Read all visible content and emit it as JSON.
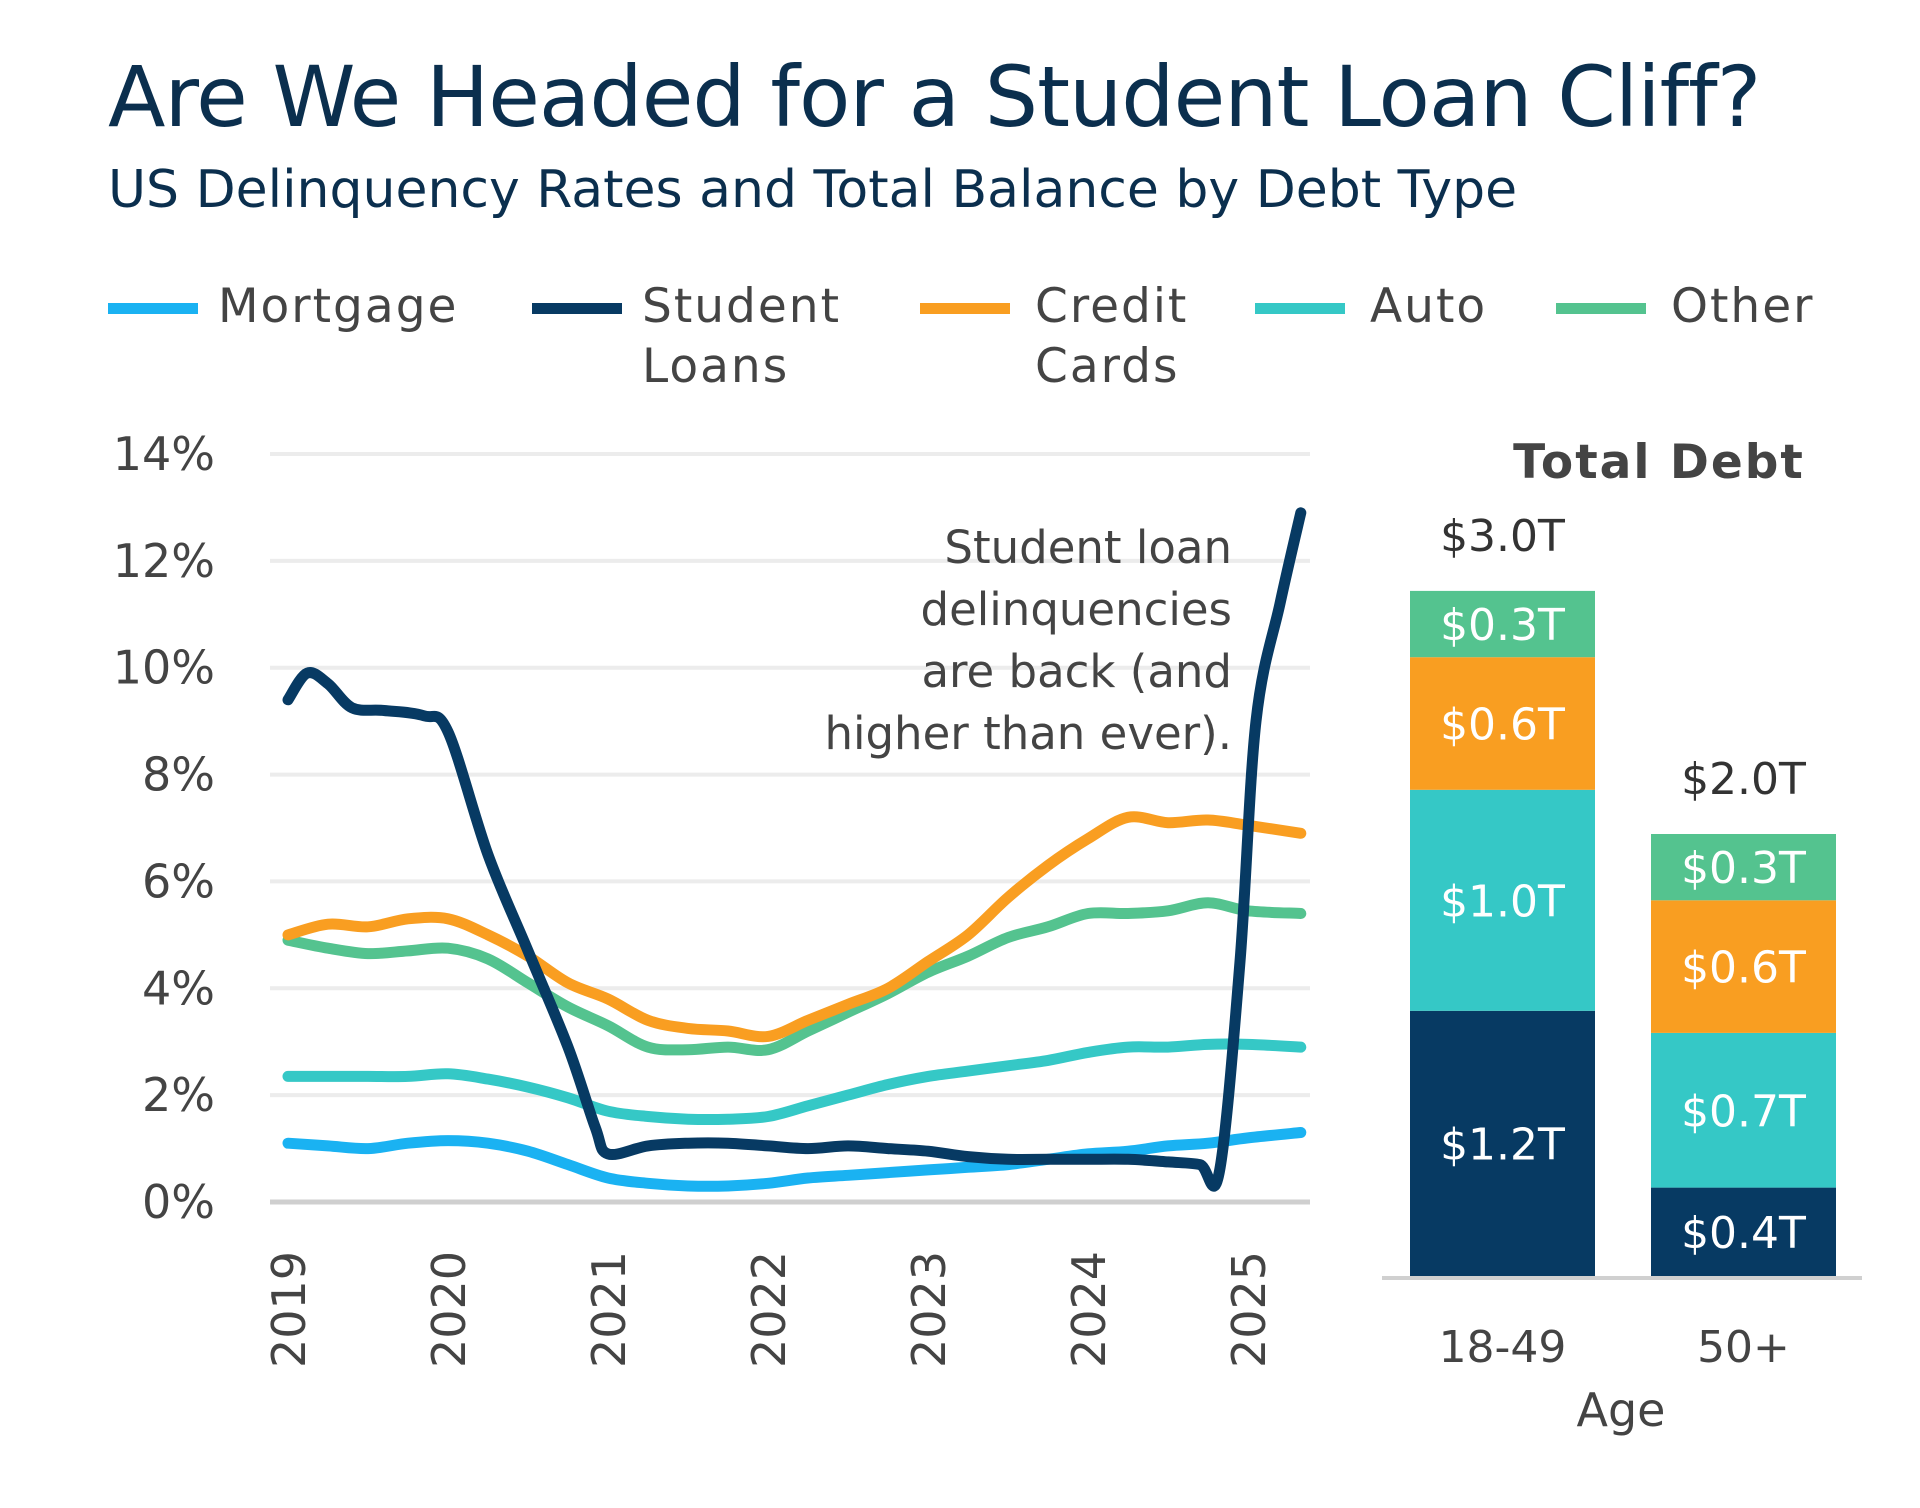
{
  "title": "Are We Headed for a Student Loan Cliff?",
  "subtitle": "US Delinquency Rates and Total Balance by Debt Type",
  "chart_data": [
    {
      "type": "line",
      "x_ticks": [
        "2019",
        "2020",
        "2021",
        "2022",
        "2023",
        "2024",
        "2025"
      ],
      "y_ticks": [
        "0%",
        "2%",
        "4%",
        "6%",
        "8%",
        "10%",
        "12%",
        "14%"
      ],
      "ylim": [
        0,
        14
      ],
      "grid": true,
      "legend_position": "top",
      "annotation": "Student loan delinquencies are back (and higher than ever).",
      "series": [
        {
          "name": "Mortgage",
          "color": "#1ab2f2",
          "points": [
            [
              2019.0,
              1.1
            ],
            [
              2019.25,
              1.05
            ],
            [
              2019.5,
              1.0
            ],
            [
              2019.75,
              1.1
            ],
            [
              2020.0,
              1.15
            ],
            [
              2020.25,
              1.1
            ],
            [
              2020.5,
              0.95
            ],
            [
              2020.75,
              0.7
            ],
            [
              2021.0,
              0.45
            ],
            [
              2021.25,
              0.35
            ],
            [
              2021.5,
              0.3
            ],
            [
              2021.75,
              0.3
            ],
            [
              2022.0,
              0.35
            ],
            [
              2022.25,
              0.45
            ],
            [
              2022.5,
              0.5
            ],
            [
              2022.75,
              0.55
            ],
            [
              2023.0,
              0.6
            ],
            [
              2023.25,
              0.65
            ],
            [
              2023.5,
              0.7
            ],
            [
              2023.75,
              0.8
            ],
            [
              2024.0,
              0.9
            ],
            [
              2024.25,
              0.95
            ],
            [
              2024.5,
              1.05
            ],
            [
              2024.75,
              1.1
            ],
            [
              2025.0,
              1.2
            ],
            [
              2025.33,
              1.3
            ]
          ]
        },
        {
          "name": "Student Loans",
          "color": "#073a63",
          "points": [
            [
              2019.0,
              9.4
            ],
            [
              2019.12,
              9.9
            ],
            [
              2019.25,
              9.7
            ],
            [
              2019.4,
              9.25
            ],
            [
              2019.6,
              9.2
            ],
            [
              2019.85,
              9.1
            ],
            [
              2020.0,
              8.8
            ],
            [
              2020.25,
              6.5
            ],
            [
              2020.5,
              4.7
            ],
            [
              2020.75,
              2.9
            ],
            [
              2020.92,
              1.4
            ],
            [
              2021.0,
              0.9
            ],
            [
              2021.25,
              1.05
            ],
            [
              2021.5,
              1.1
            ],
            [
              2021.75,
              1.1
            ],
            [
              2022.0,
              1.05
            ],
            [
              2022.25,
              1.0
            ],
            [
              2022.5,
              1.05
            ],
            [
              2022.75,
              1.0
            ],
            [
              2023.0,
              0.95
            ],
            [
              2023.25,
              0.85
            ],
            [
              2023.5,
              0.8
            ],
            [
              2023.75,
              0.8
            ],
            [
              2024.0,
              0.8
            ],
            [
              2024.25,
              0.8
            ],
            [
              2024.5,
              0.75
            ],
            [
              2024.7,
              0.7
            ],
            [
              2024.82,
              0.55
            ],
            [
              2024.95,
              4.5
            ],
            [
              2025.05,
              9.0
            ],
            [
              2025.2,
              11.2
            ],
            [
              2025.33,
              12.9
            ]
          ]
        },
        {
          "name": "Credit Cards",
          "color": "#f99e21",
          "points": [
            [
              2019.0,
              5.0
            ],
            [
              2019.25,
              5.2
            ],
            [
              2019.5,
              5.15
            ],
            [
              2019.75,
              5.3
            ],
            [
              2020.0,
              5.3
            ],
            [
              2020.25,
              5.0
            ],
            [
              2020.5,
              4.6
            ],
            [
              2020.75,
              4.1
            ],
            [
              2021.0,
              3.8
            ],
            [
              2021.25,
              3.4
            ],
            [
              2021.5,
              3.25
            ],
            [
              2021.75,
              3.2
            ],
            [
              2022.0,
              3.1
            ],
            [
              2022.25,
              3.4
            ],
            [
              2022.5,
              3.7
            ],
            [
              2022.75,
              4.0
            ],
            [
              2023.0,
              4.5
            ],
            [
              2023.25,
              5.0
            ],
            [
              2023.5,
              5.7
            ],
            [
              2023.75,
              6.3
            ],
            [
              2024.0,
              6.8
            ],
            [
              2024.25,
              7.2
            ],
            [
              2024.5,
              7.1
            ],
            [
              2024.75,
              7.15
            ],
            [
              2025.0,
              7.05
            ],
            [
              2025.33,
              6.9
            ]
          ]
        },
        {
          "name": "Auto",
          "color": "#35c8c6",
          "points": [
            [
              2019.0,
              2.35
            ],
            [
              2019.25,
              2.35
            ],
            [
              2019.5,
              2.35
            ],
            [
              2019.75,
              2.35
            ],
            [
              2020.0,
              2.4
            ],
            [
              2020.25,
              2.3
            ],
            [
              2020.5,
              2.15
            ],
            [
              2020.75,
              1.95
            ],
            [
              2021.0,
              1.7
            ],
            [
              2021.25,
              1.6
            ],
            [
              2021.5,
              1.55
            ],
            [
              2021.75,
              1.55
            ],
            [
              2022.0,
              1.6
            ],
            [
              2022.25,
              1.8
            ],
            [
              2022.5,
              2.0
            ],
            [
              2022.75,
              2.2
            ],
            [
              2023.0,
              2.35
            ],
            [
              2023.25,
              2.45
            ],
            [
              2023.5,
              2.55
            ],
            [
              2023.75,
              2.65
            ],
            [
              2024.0,
              2.8
            ],
            [
              2024.25,
              2.9
            ],
            [
              2024.5,
              2.9
            ],
            [
              2024.75,
              2.95
            ],
            [
              2025.0,
              2.95
            ],
            [
              2025.33,
              2.9
            ]
          ]
        },
        {
          "name": "Other",
          "color": "#54c38f",
          "points": [
            [
              2019.0,
              4.9
            ],
            [
              2019.25,
              4.75
            ],
            [
              2019.5,
              4.65
            ],
            [
              2019.75,
              4.7
            ],
            [
              2020.0,
              4.75
            ],
            [
              2020.25,
              4.55
            ],
            [
              2020.5,
              4.1
            ],
            [
              2020.75,
              3.65
            ],
            [
              2021.0,
              3.3
            ],
            [
              2021.25,
              2.9
            ],
            [
              2021.5,
              2.85
            ],
            [
              2021.75,
              2.9
            ],
            [
              2022.0,
              2.85
            ],
            [
              2022.25,
              3.2
            ],
            [
              2022.5,
              3.55
            ],
            [
              2022.75,
              3.9
            ],
            [
              2023.0,
              4.3
            ],
            [
              2023.25,
              4.6
            ],
            [
              2023.5,
              4.95
            ],
            [
              2023.75,
              5.15
            ],
            [
              2024.0,
              5.4
            ],
            [
              2024.25,
              5.4
            ],
            [
              2024.5,
              5.45
            ],
            [
              2024.75,
              5.6
            ],
            [
              2025.0,
              5.45
            ],
            [
              2025.33,
              5.4
            ]
          ]
        }
      ]
    },
    {
      "type": "bar",
      "stacked": true,
      "title": "Total Debt",
      "xlabel": "Age",
      "categories": [
        "18-49",
        "50+"
      ],
      "totals": [
        "$3.0T",
        "$2.0T"
      ],
      "segments": [
        {
          "category": "18-49",
          "values": [
            1.2,
            1.0,
            0.6,
            0.3
          ],
          "labels": [
            "$1.2T",
            "$1.0T",
            "$0.6T",
            "$0.3T"
          ]
        },
        {
          "category": "50+",
          "values": [
            0.4,
            0.7,
            0.6,
            0.3
          ],
          "labels": [
            "$0.4T",
            "$0.7T",
            "$0.6T",
            "$0.3T"
          ]
        }
      ],
      "segment_colors": [
        "#073a63",
        "#35c8c6",
        "#f99e21",
        "#54c38f"
      ]
    }
  ],
  "legend": [
    {
      "label_lines": [
        "Mortgage"
      ],
      "color": "#1ab2f2"
    },
    {
      "label_lines": [
        "Student",
        "Loans"
      ],
      "color": "#073a63"
    },
    {
      "label_lines": [
        "Credit",
        "Cards"
      ],
      "color": "#f99e21"
    },
    {
      "label_lines": [
        "Auto"
      ],
      "color": "#35c8c6"
    },
    {
      "label_lines": [
        "Other"
      ],
      "color": "#54c38f"
    }
  ]
}
